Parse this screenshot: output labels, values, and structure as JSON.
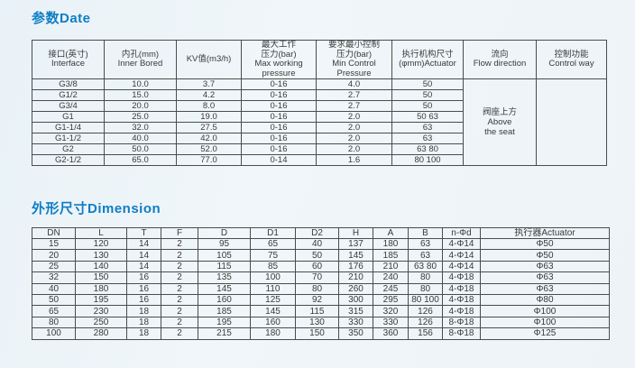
{
  "page": {
    "background_color": "#edf3f7",
    "title_color": "#0f7dc4",
    "border_color": "#4c4c4c"
  },
  "sections": {
    "parameters": {
      "title": "参数Date",
      "table": {
        "headers": [
          "接口(英寸)\nInterface",
          "内孔(mm)\nInner Bored",
          "KV值(m3/h)",
          "最大工作\n压力(bar)\nMax working\npressure",
          "要求最小控制\n压力(bar)\nMin Control\nPressure",
          "执行机构尺寸\n(φmm)Actuator",
          "流向\nFlow direction",
          "控制功能\nControl way"
        ],
        "rows": [
          [
            "G3/8",
            "10.0",
            "3.7",
            "0-16",
            "4.0",
            "50"
          ],
          [
            "G1/2",
            "15.0",
            "4.2",
            "0-16",
            "2.7",
            "50"
          ],
          [
            "G3/4",
            "20.0",
            "8.0",
            "0-16",
            "2.7",
            "50"
          ],
          [
            "G1",
            "25.0",
            "19.0",
            "0-16",
            "2.0",
            "50  63"
          ],
          [
            "G1-1/4",
            "32.0",
            "27.5",
            "0-16",
            "2.0",
            "63"
          ],
          [
            "G1-1/2",
            "40.0",
            "42.0",
            "0-16",
            "2.0",
            "63"
          ],
          [
            "G2",
            "50.0",
            "52.0",
            "0-16",
            "2.0",
            "63  80"
          ],
          [
            "G2-1/2",
            "65.0",
            "77.0",
            "0-14",
            "1.6",
            "80  100"
          ]
        ],
        "merged_cells": [
          {
            "name": "flow-direction-cell",
            "text": "阀座上方\nAbove\nthe seat"
          },
          {
            "name": "control-way-cell",
            "text": ""
          }
        ]
      }
    },
    "dimension": {
      "title": "外形尺寸Dimension",
      "table": {
        "headers": [
          "DN",
          "L",
          "T",
          "F",
          "D",
          "D1",
          "D2",
          "H",
          "A",
          "B",
          "n-Φd",
          "执行器Actuator"
        ],
        "rows": [
          [
            "15",
            "120",
            "14",
            "2",
            "95",
            "65",
            "40",
            "137",
            "180",
            "63",
            "4-Φ14",
            "Φ50"
          ],
          [
            "20",
            "130",
            "14",
            "2",
            "105",
            "75",
            "50",
            "145",
            "185",
            "63",
            "4-Φ14",
            "Φ50"
          ],
          [
            "25",
            "140",
            "14",
            "2",
            "115",
            "85",
            "60",
            "176",
            "210",
            "63  80",
            "4-Φ14",
            "Φ63"
          ],
          [
            "32",
            "150",
            "16",
            "2",
            "135",
            "100",
            "70",
            "210",
            "240",
            "80",
            "4-Φ18",
            "Φ63"
          ],
          [
            "40",
            "180",
            "16",
            "2",
            "145",
            "110",
            "80",
            "260",
            "245",
            "80",
            "4-Φ18",
            "Φ63"
          ],
          [
            "50",
            "195",
            "16",
            "2",
            "160",
            "125",
            "92",
            "300",
            "295",
            "80  100",
            "4-Φ18",
            "Φ80"
          ],
          [
            "65",
            "230",
            "18",
            "2",
            "185",
            "145",
            "115",
            "315",
            "320",
            "126",
            "4-Φ18",
            "Φ100"
          ],
          [
            "80",
            "250",
            "18",
            "2",
            "195",
            "160",
            "130",
            "330",
            "330",
            "126",
            "8-Φ18",
            "Φ100"
          ],
          [
            "100",
            "280",
            "18",
            "2",
            "215",
            "180",
            "150",
            "350",
            "360",
            "156",
            "8-Φ18",
            "Φ125"
          ]
        ]
      }
    }
  }
}
